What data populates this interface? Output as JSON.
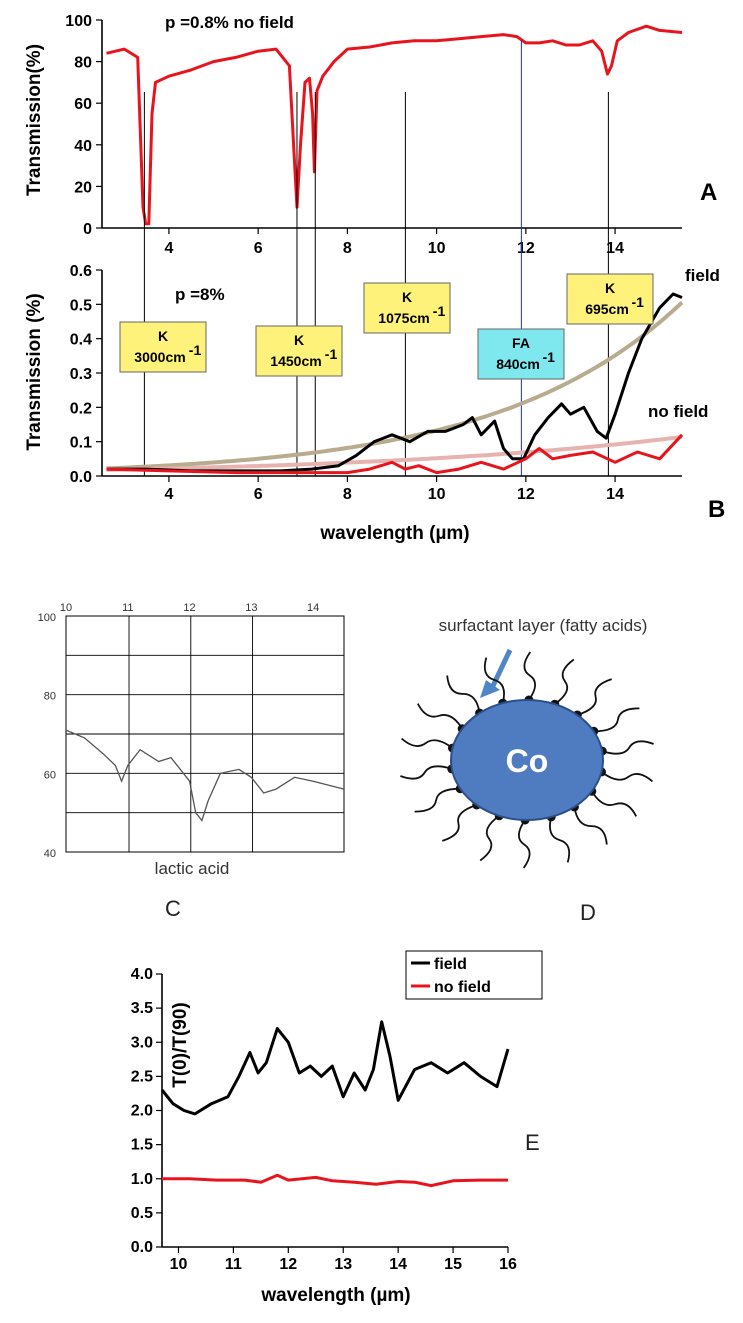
{
  "colors": {
    "field": "#000000",
    "no_field": "#e8141d",
    "fit_field": "#b8ab8e",
    "fit_no_field": "#e7b3b0",
    "k_box": "#fff27a",
    "fa_box": "#7fe8ef",
    "fa_line": "#2030c8",
    "co_fill": "#4f7cc0",
    "arrow": "#4f86c6"
  },
  "chart_data": [
    {
      "id": "A",
      "type": "line",
      "panel_label": "A",
      "ylabel": "Transmission(%)",
      "annotation": "p =0.8% no field",
      "xlim": [
        2.5,
        15.5
      ],
      "ylim": [
        0,
        100
      ],
      "yticks": [
        "0",
        "20",
        "40",
        "60",
        "80",
        "100"
      ],
      "xticks": [
        "4",
        "6",
        "8",
        "10",
        "12",
        "14"
      ],
      "series": [
        {
          "color": "#e8141d",
          "x": [
            2.6,
            3.0,
            3.3,
            3.42,
            3.48,
            3.55,
            3.62,
            3.7,
            4.0,
            4.5,
            5.0,
            5.5,
            6.0,
            6.4,
            6.7,
            6.82,
            6.87,
            6.95,
            7.05,
            7.15,
            7.22,
            7.26,
            7.32,
            7.45,
            7.7,
            8.0,
            8.5,
            9.0,
            9.5,
            10.0,
            10.5,
            11.0,
            11.5,
            11.8,
            12.0,
            12.3,
            12.6,
            12.9,
            13.2,
            13.5,
            13.7,
            13.83,
            13.92,
            14.05,
            14.3,
            14.7,
            15.0,
            15.5
          ],
          "y": [
            84,
            86,
            82,
            10,
            2,
            2,
            55,
            70,
            73,
            76,
            80,
            82,
            85,
            86,
            78,
            30,
            10,
            40,
            70,
            72,
            55,
            27,
            66,
            73,
            80,
            86,
            87,
            89,
            90,
            90,
            91,
            92,
            93,
            92,
            89,
            89,
            90,
            88,
            88,
            90,
            85,
            74,
            78,
            90,
            94,
            97,
            95,
            94
          ]
        }
      ]
    },
    {
      "id": "B",
      "type": "line",
      "panel_label": "B",
      "ylabel": "Transmission (%)",
      "xlabel": "wavelength (µm)",
      "annotation": "p =8%",
      "xlim": [
        2.5,
        15.5
      ],
      "ylim": [
        0,
        0.6
      ],
      "yticks": [
        "0.0",
        "0.1",
        "0.2",
        "0.3",
        "0.4",
        "0.5",
        "0.6"
      ],
      "xticks": [
        "4",
        "6",
        "8",
        "10",
        "12",
        "14"
      ],
      "series": [
        {
          "name": "field",
          "color": "#000000",
          "x": [
            2.6,
            3.5,
            4.5,
            5.5,
            6.5,
            7.2,
            7.8,
            8.2,
            8.6,
            9.0,
            9.4,
            9.8,
            10.2,
            10.6,
            10.8,
            11.0,
            11.3,
            11.5,
            11.7,
            11.95,
            12.2,
            12.5,
            12.8,
            13.0,
            13.3,
            13.6,
            13.8,
            14.0,
            14.3,
            14.6,
            15.0,
            15.3,
            15.5
          ],
          "y": [
            0.02,
            0.02,
            0.015,
            0.015,
            0.015,
            0.02,
            0.03,
            0.06,
            0.1,
            0.12,
            0.1,
            0.13,
            0.13,
            0.15,
            0.17,
            0.12,
            0.16,
            0.08,
            0.05,
            0.05,
            0.12,
            0.17,
            0.21,
            0.18,
            0.2,
            0.13,
            0.11,
            0.18,
            0.3,
            0.4,
            0.49,
            0.53,
            0.52
          ]
        },
        {
          "name": "no field",
          "color": "#e8141d",
          "x": [
            2.6,
            4.0,
            5.5,
            7.0,
            8.0,
            8.5,
            9.0,
            9.3,
            9.6,
            10.0,
            10.5,
            11.0,
            11.5,
            12.0,
            12.3,
            12.6,
            13.0,
            13.5,
            14.0,
            14.5,
            15.0,
            15.5
          ],
          "y": [
            0.02,
            0.015,
            0.01,
            0.01,
            0.01,
            0.02,
            0.04,
            0.02,
            0.03,
            0.01,
            0.02,
            0.04,
            0.02,
            0.05,
            0.08,
            0.05,
            0.06,
            0.07,
            0.04,
            0.07,
            0.05,
            0.12
          ]
        }
      ],
      "series_labels": [
        "field",
        "no field"
      ],
      "annotations": [
        {
          "title": "K",
          "sub": "3000cm",
          "sup": "-1",
          "x": 3.45
        },
        {
          "title": "K",
          "sub": "1450cm",
          "sup": "-1",
          "x": 6.87
        },
        {
          "title": "K",
          "sub": "1075cm",
          "sup": "-1",
          "x": 9.3
        },
        {
          "title": "FA",
          "sub": "840cm",
          "sup": "-1",
          "x": 11.9
        },
        {
          "title": "K",
          "sub": "695cm",
          "sup": "-1",
          "x": 13.85
        }
      ],
      "marker_lines_x": [
        3.45,
        6.87,
        7.28,
        9.3,
        11.9,
        13.85
      ]
    },
    {
      "id": "C",
      "type": "line",
      "panel_label": "C",
      "caption": "lactic acid",
      "xlim": [
        10,
        14.5
      ],
      "ylim": [
        40,
        100
      ],
      "xticks": [
        "10",
        "11",
        "12",
        "13",
        "14"
      ],
      "yticks": [
        "40",
        "60",
        "80",
        "100"
      ],
      "series": [
        {
          "color": "#555555",
          "x": [
            10,
            10.3,
            10.6,
            10.8,
            10.9,
            11.0,
            11.2,
            11.5,
            11.7,
            12.0,
            12.1,
            12.2,
            12.3,
            12.5,
            12.8,
            13.0,
            13.2,
            13.4,
            13.7,
            14.0,
            14.5
          ],
          "y": [
            71,
            69,
            65,
            62,
            58,
            62,
            66,
            63,
            64,
            58,
            50,
            48,
            53,
            60,
            61,
            59,
            55,
            56,
            59,
            58,
            56
          ]
        }
      ]
    },
    {
      "id": "E",
      "type": "line",
      "panel_label": "E",
      "ylabel": "T(0)/T(90)",
      "xlabel": "wavelength (µm)",
      "xlim": [
        9.7,
        16
      ],
      "ylim": [
        0,
        4
      ],
      "xticks": [
        "10",
        "11",
        "12",
        "13",
        "14",
        "15",
        "16"
      ],
      "yticks": [
        "0.0",
        "0.5",
        "1.0",
        "1.5",
        "2.0",
        "2.5",
        "3.0",
        "3.5",
        "4.0"
      ],
      "legend": [
        "field",
        "no field"
      ],
      "legend_position": "top-right",
      "series": [
        {
          "name": "field",
          "color": "#000000",
          "x": [
            9.7,
            9.9,
            10.1,
            10.3,
            10.6,
            10.9,
            11.1,
            11.3,
            11.45,
            11.6,
            11.8,
            12.0,
            12.2,
            12.4,
            12.6,
            12.8,
            13.0,
            13.2,
            13.4,
            13.55,
            13.7,
            13.85,
            14.0,
            14.3,
            14.6,
            14.9,
            15.2,
            15.5,
            15.8,
            16.0
          ],
          "y": [
            2.3,
            2.1,
            2.0,
            1.95,
            2.1,
            2.2,
            2.5,
            2.85,
            2.55,
            2.7,
            3.2,
            3.0,
            2.55,
            2.65,
            2.5,
            2.65,
            2.2,
            2.55,
            2.3,
            2.6,
            3.3,
            2.8,
            2.15,
            2.6,
            2.7,
            2.55,
            2.7,
            2.5,
            2.35,
            2.9
          ]
        },
        {
          "name": "no field",
          "color": "#e8141d",
          "x": [
            9.7,
            10.2,
            10.7,
            11.2,
            11.5,
            11.8,
            12.0,
            12.5,
            12.8,
            13.2,
            13.6,
            14.0,
            14.3,
            14.6,
            15.0,
            15.5,
            16.0
          ],
          "y": [
            1.0,
            1.0,
            0.98,
            0.98,
            0.95,
            1.05,
            0.98,
            1.02,
            0.97,
            0.95,
            0.92,
            0.96,
            0.95,
            0.9,
            0.97,
            0.98,
            0.98
          ]
        }
      ]
    }
  ],
  "diagram_d": {
    "label": "surfactant layer (fatty acids)",
    "core": "Co",
    "panel_label": "D"
  }
}
